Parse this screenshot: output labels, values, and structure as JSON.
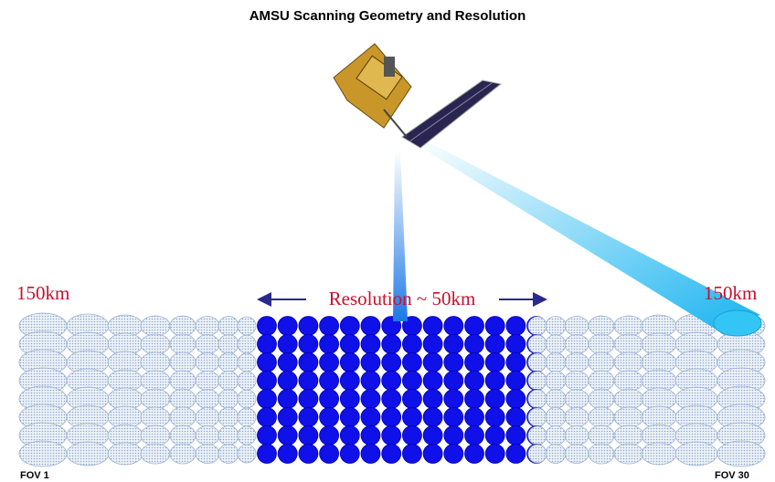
{
  "title": "AMSU Scanning Geometry and Resolution",
  "labels": {
    "left_footprint": "150km",
    "nadir_resolution": "Resolution ~ 50km",
    "right_footprint": "150km",
    "fov_first": "FOV 1",
    "fov_last": "FOV 30"
  }
}
